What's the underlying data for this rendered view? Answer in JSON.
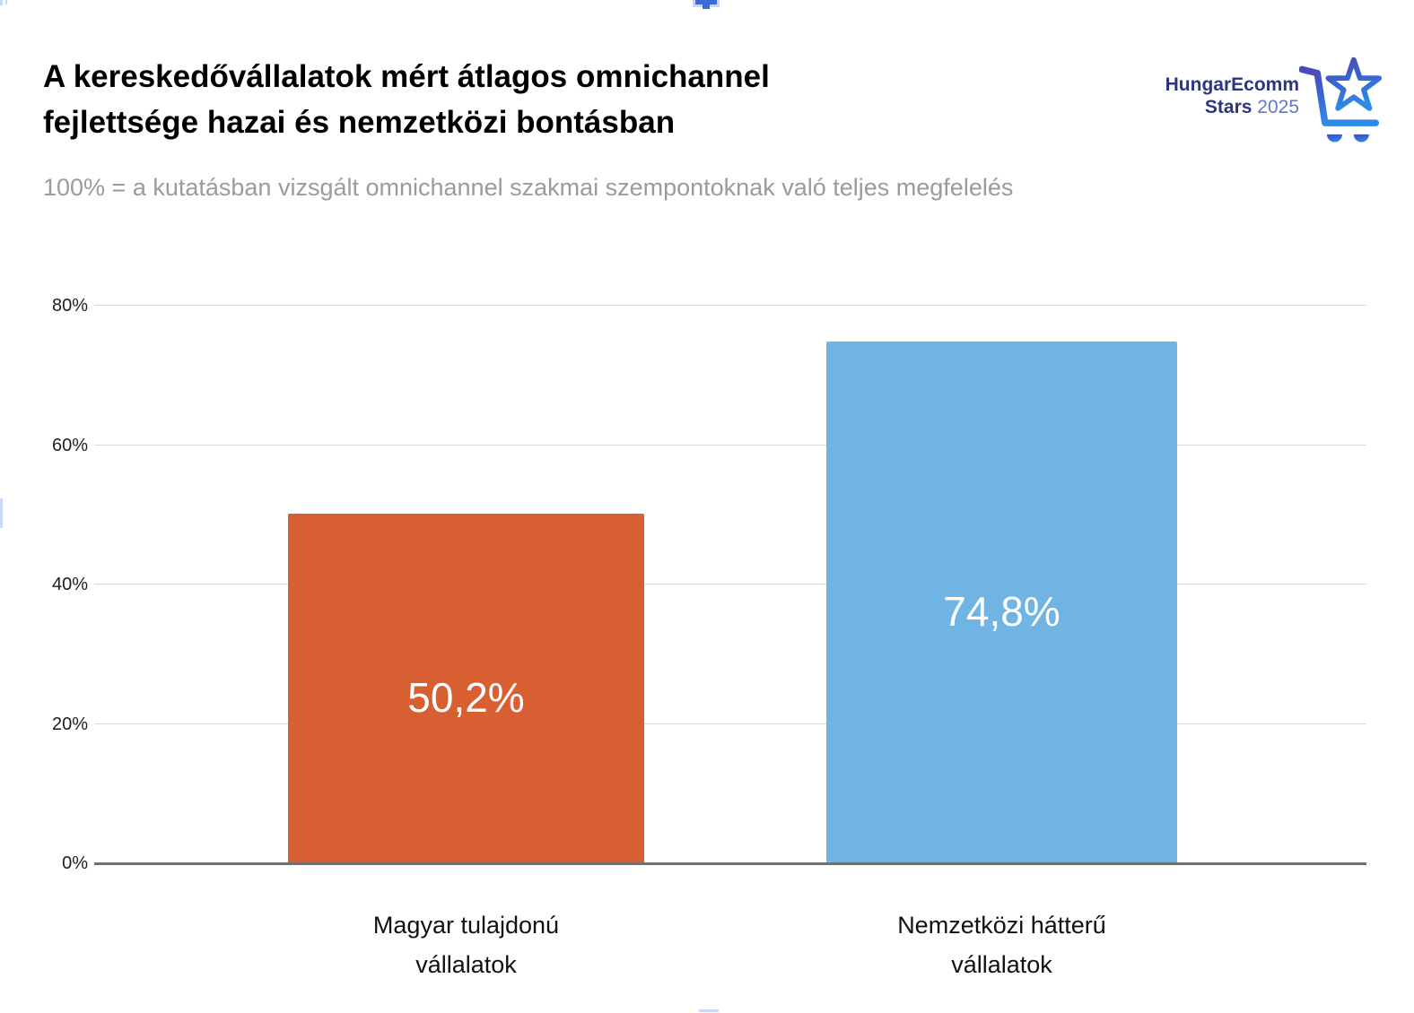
{
  "header": {
    "title_line1": "A kereskedővállalatok mért átlagos omnichannel",
    "title_line2": "fejlettsége hazai és nemzetközi bontásban",
    "subtitle": "100% = a kutatásban vizsgált omnichannel szakmai szempontoknak való teljes megfelelés"
  },
  "logo": {
    "name_line1": "HungarEcomm",
    "name_line2_bold": "Stars",
    "name_line2_year": "2025",
    "text_color": "#2d3583",
    "year_color": "#6577c8",
    "icon": "cart-star-icon",
    "icon_gradient": [
      "#4b49b8",
      "#3a63ce",
      "#2f8be8"
    ]
  },
  "chart_data": {
    "type": "bar",
    "title": "A kereskedővállalatok mért átlagos omnichannel fejlettsége hazai és nemzetközi bontásban",
    "subtitle": "100% = a kutatásban vizsgált omnichannel szakmai szempontoknak való teljes megfelelés",
    "categories": [
      "Magyar tulajdonú vállalatok",
      "Nemzetközi hátterű vállalatok"
    ],
    "category_label_lines": [
      [
        "Magyar tulajdonú",
        "vállalatok"
      ],
      [
        "Nemzetközi hátterű",
        "vállalatok"
      ]
    ],
    "values": [
      50.2,
      74.8
    ],
    "value_labels": [
      "50,2%",
      "74,8%"
    ],
    "bar_colors": [
      "#d85f31",
      "#6fb4e3"
    ],
    "value_label_color": "#ffffff",
    "xlabel": "",
    "ylabel": "",
    "ylim": [
      0,
      80
    ],
    "yticks": [
      0,
      20,
      40,
      60,
      80
    ],
    "ytick_labels": [
      "0%",
      "20%",
      "40%",
      "60%",
      "80%"
    ],
    "grid": true,
    "gridline_color": "#d9d9d9",
    "axis_line_color": "#707070",
    "legend_position": "none"
  },
  "editor_overlay": {
    "top_handle_color": "#3c6bd9",
    "faint_handle_color": "#c7d9f6"
  }
}
